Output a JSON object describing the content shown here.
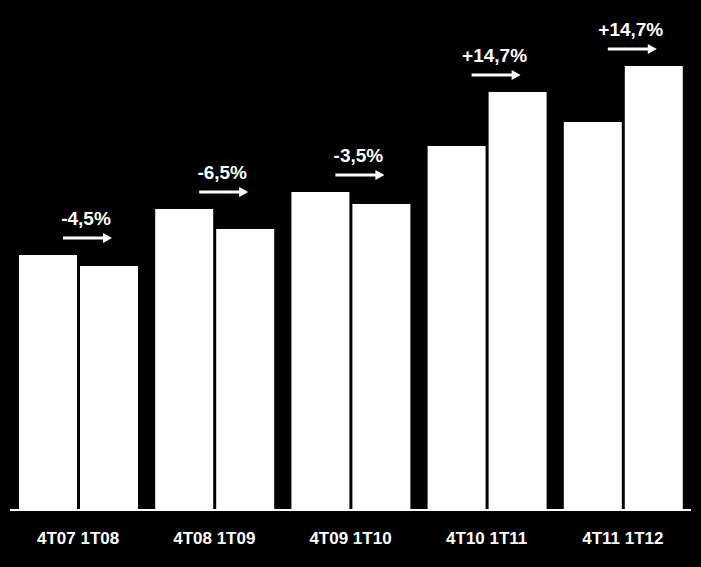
{
  "chart_data": {
    "type": "bar",
    "categories": [
      "4T07 1T08",
      "4T08 1T09",
      "4T09 1T10",
      "4T10 1T11",
      "4T11 1T12"
    ],
    "series": [
      {
        "color": "#ffffff",
        "values": [
          255,
          301,
          318,
          364,
          388
        ]
      },
      {
        "color": "#ffffff",
        "values": [
          244,
          281,
          306,
          418,
          444
        ]
      }
    ],
    "annotations": [
      "-4,5%",
      "-6,5%",
      "-3,5%",
      "+14,7%",
      "+14,7%"
    ],
    "ylim": [
      0,
      460
    ],
    "tick_labels": "x",
    "grid": false
  }
}
